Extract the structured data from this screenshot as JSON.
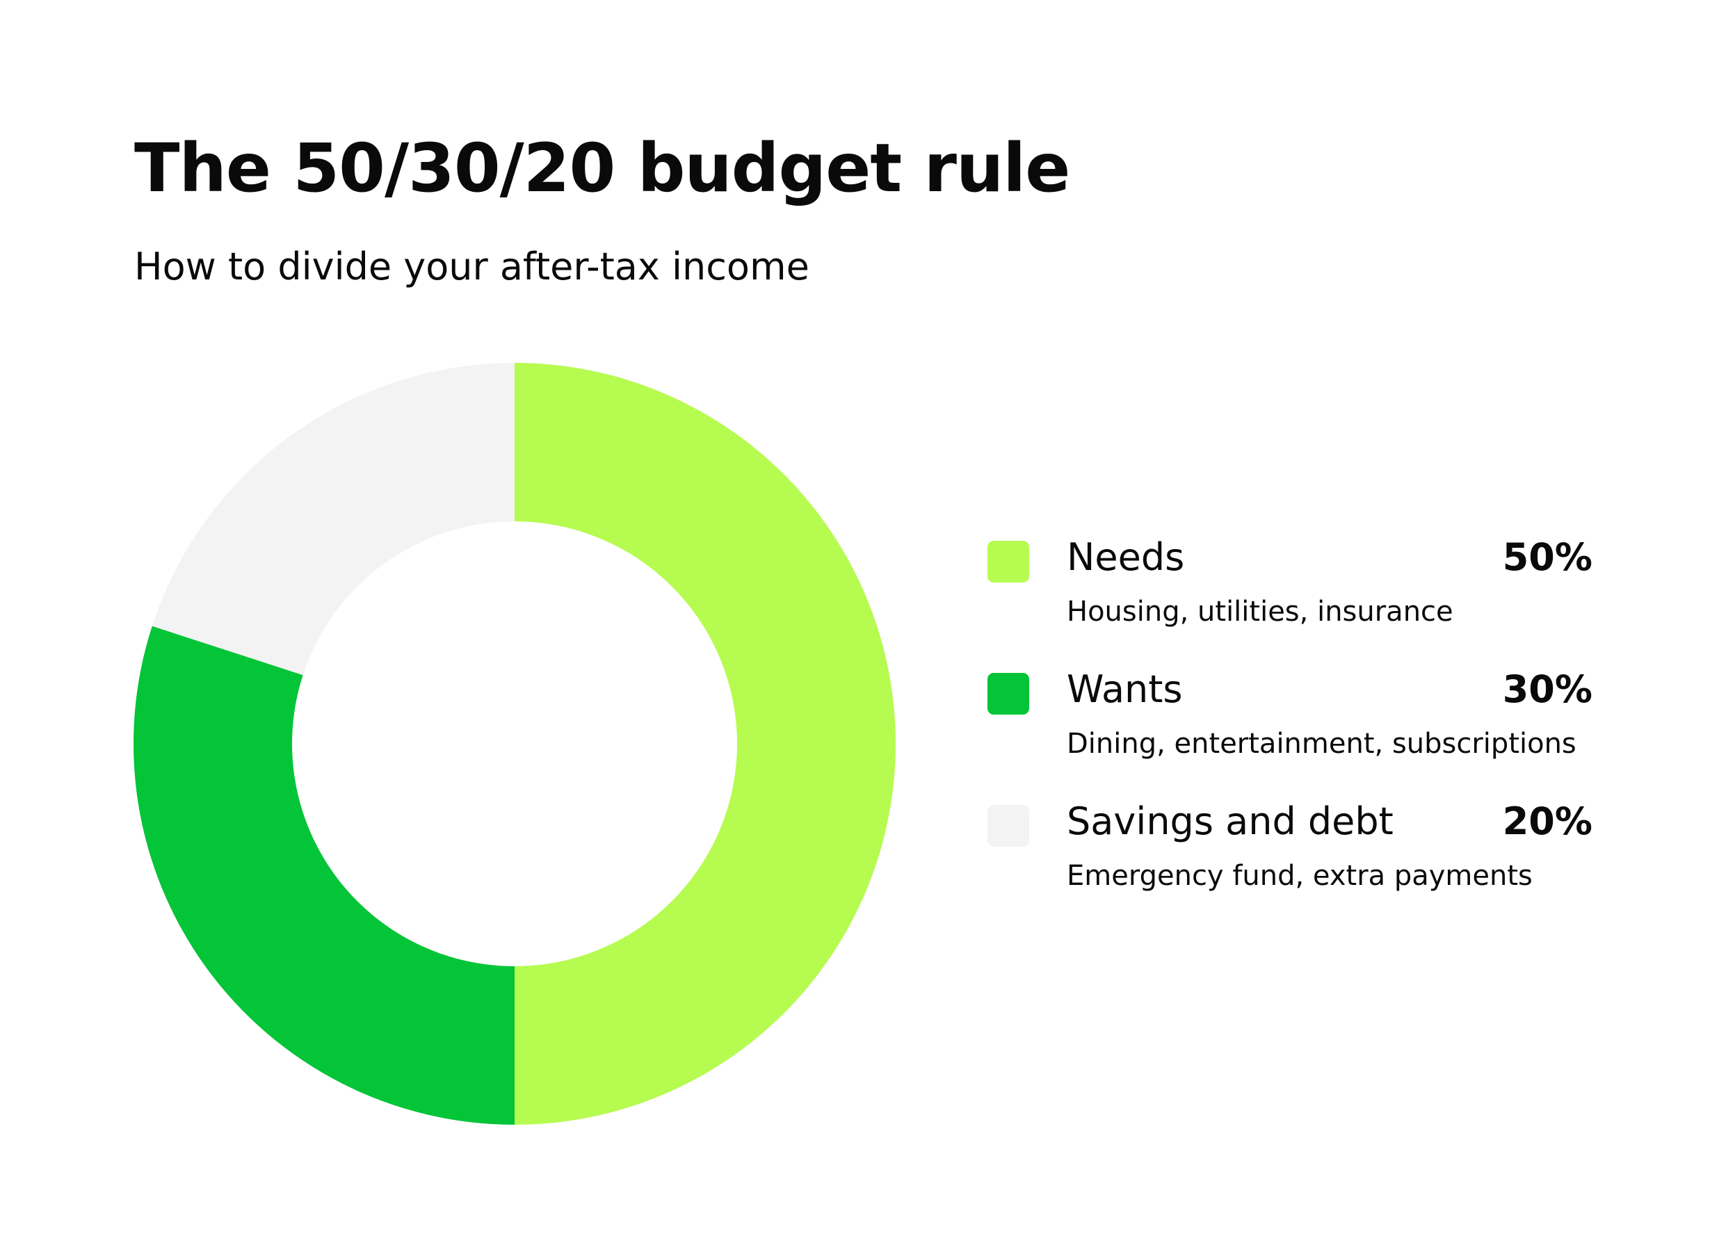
{
  "chart_data": {
    "type": "pie",
    "title": "The 50/30/20 budget rule",
    "subtitle": "How to divide your after-tax income",
    "series": [
      {
        "name": "Needs",
        "value": 50,
        "label": "50%",
        "description": "Housing, utilities, insurance",
        "color": "#B6FB50"
      },
      {
        "name": "Wants",
        "value": 30,
        "label": "30%",
        "description": "Dining, entertainment, subscriptions",
        "color": "#04C437"
      },
      {
        "name": "Savings and debt",
        "value": 20,
        "label": "20%",
        "description": "Emergency fund, extra payments",
        "color": "#F3F3F3"
      }
    ],
    "start_angle": "12 o'clock",
    "direction": "clockwise",
    "legend_position": "right",
    "hole": true
  }
}
